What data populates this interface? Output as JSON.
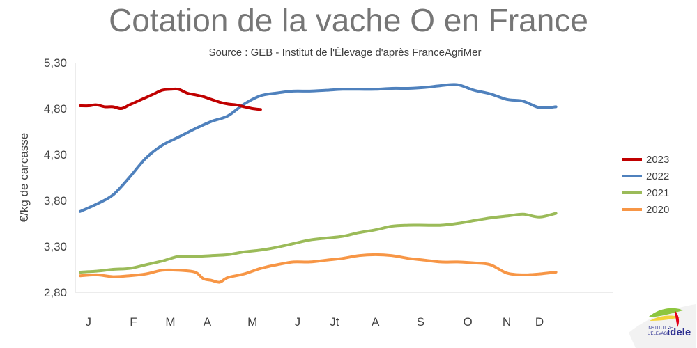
{
  "chart_data": {
    "type": "line",
    "title": "Cotation de la vache O en France",
    "subtitle": "Source : GEB - Institut de l'Élevage d'après FranceAgriMer",
    "xlabel": "",
    "ylabel": "€/kg de carcasse",
    "ylim": [
      2.8,
      5.3
    ],
    "yticks": [
      2.8,
      3.3,
      3.8,
      4.3,
      4.8,
      5.3
    ],
    "ytick_labels": [
      "2,80",
      "3,30",
      "3,80",
      "4,30",
      "4,80",
      "5,30"
    ],
    "xlim": [
      0,
      13
    ],
    "categories": [
      "J",
      "F",
      "M",
      "A",
      "M",
      "J",
      "Jt",
      "A",
      "S",
      "O",
      "N",
      "D"
    ],
    "category_positions": [
      0.2,
      1.3,
      2.2,
      3.1,
      4.2,
      5.3,
      6.2,
      7.2,
      8.3,
      9.45,
      10.4,
      11.2
    ],
    "grid": false,
    "legend_position": "right",
    "series": [
      {
        "name": "2023",
        "color": "#C00000",
        "x": [
          0,
          0.2,
          0.4,
          0.6,
          0.8,
          1.0,
          1.2,
          1.4,
          1.6,
          1.8,
          2.0,
          2.2,
          2.4,
          2.6,
          2.8,
          3.0,
          3.2,
          3.4,
          3.6,
          3.8,
          4.0,
          4.2,
          4.4
        ],
        "y": [
          4.83,
          4.83,
          4.84,
          4.82,
          4.82,
          4.8,
          4.84,
          4.88,
          4.92,
          4.96,
          5.0,
          5.01,
          5.01,
          4.97,
          4.95,
          4.93,
          4.9,
          4.87,
          4.85,
          4.84,
          4.82,
          4.8,
          4.79
        ]
      },
      {
        "name": "2022",
        "color": "#4F81BD",
        "x": [
          0,
          0.4,
          0.8,
          1.2,
          1.6,
          2.0,
          2.4,
          2.8,
          3.2,
          3.6,
          4.0,
          4.4,
          4.8,
          5.2,
          5.6,
          6.0,
          6.4,
          6.8,
          7.2,
          7.6,
          8.0,
          8.4,
          8.8,
          9.2,
          9.6,
          10.0,
          10.4,
          10.8,
          11.2,
          11.6
        ],
        "y": [
          3.68,
          3.76,
          3.86,
          4.05,
          4.26,
          4.4,
          4.49,
          4.58,
          4.66,
          4.72,
          4.85,
          4.94,
          4.97,
          4.99,
          4.99,
          5.0,
          5.01,
          5.01,
          5.01,
          5.02,
          5.02,
          5.03,
          5.05,
          5.06,
          5.0,
          4.96,
          4.9,
          4.88,
          4.81,
          4.82
        ]
      },
      {
        "name": "2021",
        "color": "#9BBB59",
        "x": [
          0,
          0.4,
          0.8,
          1.2,
          1.6,
          2.0,
          2.4,
          2.8,
          3.2,
          3.6,
          4.0,
          4.4,
          4.8,
          5.2,
          5.6,
          6.0,
          6.4,
          6.8,
          7.2,
          7.6,
          8.0,
          8.4,
          8.8,
          9.2,
          9.6,
          10.0,
          10.4,
          10.8,
          11.2,
          11.6
        ],
        "y": [
          3.02,
          3.03,
          3.05,
          3.06,
          3.1,
          3.14,
          3.19,
          3.19,
          3.2,
          3.21,
          3.24,
          3.26,
          3.29,
          3.33,
          3.37,
          3.39,
          3.41,
          3.45,
          3.48,
          3.52,
          3.53,
          3.53,
          3.53,
          3.55,
          3.58,
          3.61,
          3.63,
          3.65,
          3.62,
          3.66
        ]
      },
      {
        "name": "2020",
        "color": "#F79646",
        "x": [
          0,
          0.4,
          0.8,
          1.2,
          1.6,
          2.0,
          2.4,
          2.8,
          3.0,
          3.2,
          3.4,
          3.6,
          4.0,
          4.4,
          4.8,
          5.2,
          5.6,
          6.0,
          6.4,
          6.8,
          7.2,
          7.6,
          8.0,
          8.4,
          8.8,
          9.2,
          9.6,
          10.0,
          10.4,
          10.8,
          11.2,
          11.6
        ],
        "y": [
          2.98,
          2.99,
          2.97,
          2.98,
          3.0,
          3.04,
          3.04,
          3.02,
          2.95,
          2.93,
          2.91,
          2.96,
          3.0,
          3.06,
          3.1,
          3.13,
          3.13,
          3.15,
          3.17,
          3.2,
          3.21,
          3.2,
          3.17,
          3.15,
          3.13,
          3.13,
          3.12,
          3.1,
          3.01,
          2.99,
          3.0,
          3.02
        ]
      }
    ]
  },
  "logo": {
    "name": "idele",
    "line1": "INSTITUT DE",
    "line2": "L'ÉLEVAGE"
  }
}
